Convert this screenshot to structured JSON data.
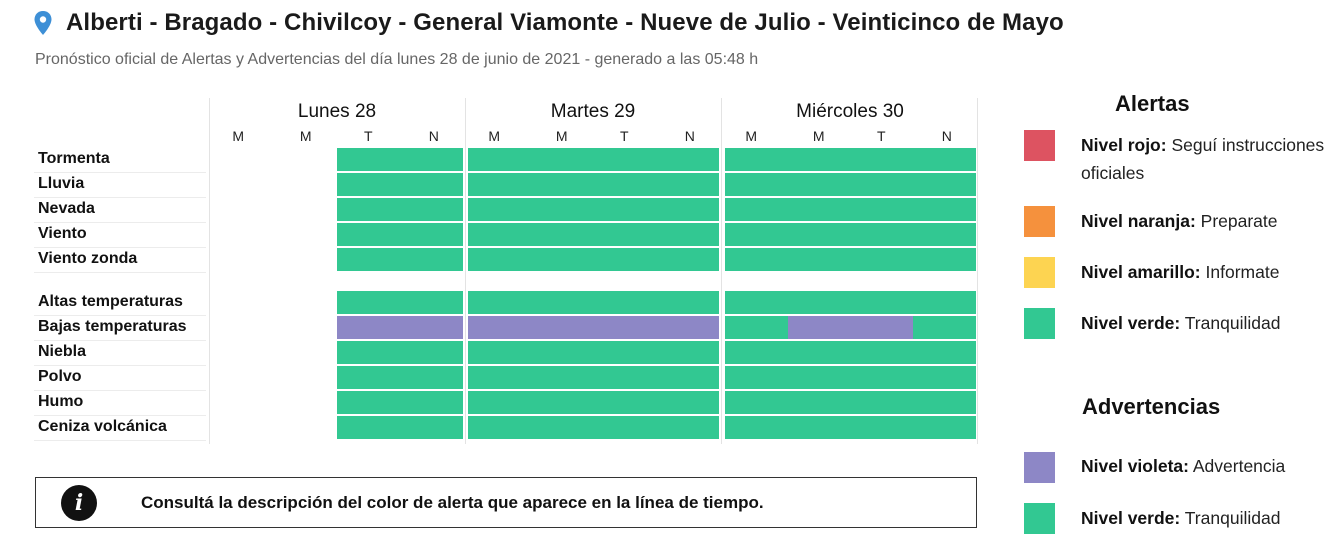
{
  "header": {
    "title": "Alberti - Bragado - Chivilcoy - General Viamonte - Nueve de Julio - Veinticinco de Mayo",
    "subtitle": "Pronóstico oficial de Alertas y Advertencias del día lunes 28 de junio de 2021 - generado a las 05:48 h"
  },
  "timeline": {
    "days": [
      "Lunes 28",
      "Martes 29",
      "Miércoles 30"
    ],
    "slots": [
      "M",
      "M",
      "T",
      "N"
    ],
    "rows": [
      {
        "label": "Tormenta",
        "levels": [
          null,
          null,
          "verde",
          "verde",
          "verde",
          "verde",
          "verde",
          "verde",
          "verde",
          "verde",
          "verde",
          "verde"
        ]
      },
      {
        "label": "Lluvia",
        "levels": [
          null,
          null,
          "verde",
          "verde",
          "verde",
          "verde",
          "verde",
          "verde",
          "verde",
          "verde",
          "verde",
          "verde"
        ]
      },
      {
        "label": "Nevada",
        "levels": [
          null,
          null,
          "verde",
          "verde",
          "verde",
          "verde",
          "verde",
          "verde",
          "verde",
          "verde",
          "verde",
          "verde"
        ]
      },
      {
        "label": "Viento",
        "levels": [
          null,
          null,
          "verde",
          "verde",
          "verde",
          "verde",
          "verde",
          "verde",
          "verde",
          "verde",
          "verde",
          "verde"
        ]
      },
      {
        "label": "Viento zonda",
        "levels": [
          null,
          null,
          "verde",
          "verde",
          "verde",
          "verde",
          "verde",
          "verde",
          "verde",
          "verde",
          "verde",
          "verde"
        ]
      },
      {
        "label": "Altas temperaturas",
        "levels": [
          null,
          null,
          "verde",
          "verde",
          "verde",
          "verde",
          "verde",
          "verde",
          "verde",
          "verde",
          "verde",
          "verde"
        ]
      },
      {
        "label": "Bajas temperaturas",
        "levels": [
          null,
          null,
          "violeta",
          "violeta",
          "violeta",
          "violeta",
          "violeta",
          "violeta",
          "verde",
          "violeta",
          "violeta",
          "verde"
        ]
      },
      {
        "label": "Niebla",
        "levels": [
          null,
          null,
          "verde",
          "verde",
          "verde",
          "verde",
          "verde",
          "verde",
          "verde",
          "verde",
          "verde",
          "verde"
        ]
      },
      {
        "label": "Polvo",
        "levels": [
          null,
          null,
          "verde",
          "verde",
          "verde",
          "verde",
          "verde",
          "verde",
          "verde",
          "verde",
          "verde",
          "verde"
        ]
      },
      {
        "label": "Humo",
        "levels": [
          null,
          null,
          "verde",
          "verde",
          "verde",
          "verde",
          "verde",
          "verde",
          "verde",
          "verde",
          "verde",
          "verde"
        ]
      },
      {
        "label": "Ceniza volcánica",
        "levels": [
          null,
          null,
          "verde",
          "verde",
          "verde",
          "verde",
          "verde",
          "verde",
          "verde",
          "verde",
          "verde",
          "verde"
        ]
      }
    ]
  },
  "info": {
    "icon": "info-icon",
    "text": "Consultá la descripción del color de alerta que aparece en la línea de tiempo."
  },
  "legend": {
    "alertas_title": "Alertas",
    "advertencias_title": "Advertencias",
    "alertas": [
      {
        "level": "Nivel rojo:",
        "desc": " Seguí instrucciones oficiales",
        "color": "#dd5361"
      },
      {
        "level": "Nivel naranja:",
        "desc": " Preparate",
        "color": "#f5913d"
      },
      {
        "level": "Nivel amarillo:",
        "desc": " Informate",
        "color": "#fdd451"
      },
      {
        "level": "Nivel verde:",
        "desc": " Tranquilidad",
        "color": "#32c892"
      }
    ],
    "advertencias": [
      {
        "level": "Nivel violeta:",
        "desc": " Advertencia",
        "color": "#8d87c6"
      },
      {
        "level": "Nivel verde:",
        "desc": " Tranquilidad",
        "color": "#32c892"
      }
    ]
  },
  "colors": {
    "verde": "#32c892",
    "violeta": "#8d87c6",
    "pin": "#3d8fd6"
  }
}
